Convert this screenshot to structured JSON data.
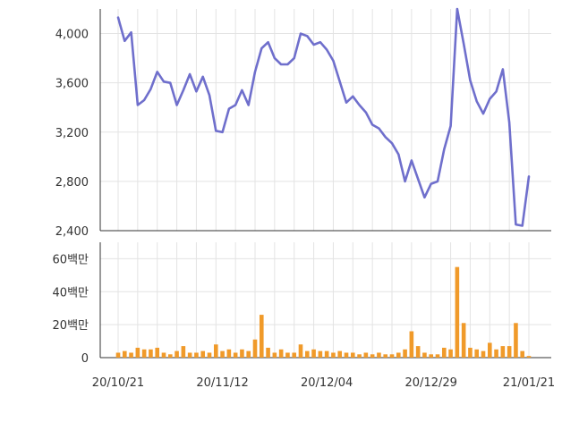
{
  "chart_data": [
    {
      "type": "line",
      "title": "",
      "xlabel": "",
      "ylabel": "",
      "ylim": [
        2400,
        4200
      ],
      "yticks": [
        {
          "value": 2400,
          "label": "2,400"
        },
        {
          "value": 2800,
          "label": "2,800"
        },
        {
          "value": 3200,
          "label": "3,200"
        },
        {
          "value": 3600,
          "label": "3,600"
        },
        {
          "value": 4000,
          "label": "4,000"
        }
      ],
      "grid": true,
      "legend": "none",
      "color": "#6f6fcc",
      "series": [
        {
          "values": [
            4130,
            3940,
            4010,
            3420,
            3460,
            3550,
            3690,
            3610,
            3600,
            3420,
            3540,
            3670,
            3530,
            3650,
            3500,
            3210,
            3200,
            3390,
            3420,
            3540,
            3420,
            3690,
            3880,
            3930,
            3800,
            3750,
            3750,
            3800,
            4000,
            3980,
            3910,
            3930,
            3870,
            3780,
            3610,
            3440,
            3490,
            3420,
            3360,
            3260,
            3230,
            3160,
            3110,
            3020,
            2800,
            2970,
            2820,
            2670,
            2780,
            2800,
            3060,
            3250,
            4200,
            3920,
            3620,
            3450,
            3350,
            3470,
            3530,
            3710,
            3280,
            2450,
            2440,
            2840
          ]
        }
      ]
    },
    {
      "type": "bar",
      "title": "",
      "xlabel": "",
      "ylabel": "",
      "ylim": [
        0,
        70
      ],
      "yticks": [
        {
          "value": 0,
          "label": "0"
        },
        {
          "value": 20,
          "label": "20백만"
        },
        {
          "value": 40,
          "label": "40백만"
        },
        {
          "value": 60,
          "label": "60백만"
        }
      ],
      "grid": true,
      "legend": "none",
      "color": "#f09a2a",
      "xticks": [
        {
          "index": 0,
          "label": "20/10/21"
        },
        {
          "index": 16,
          "label": "20/11/12"
        },
        {
          "index": 32,
          "label": "20/12/04"
        },
        {
          "index": 48,
          "label": "20/12/29"
        },
        {
          "index": 63,
          "label": "21/01/21"
        }
      ],
      "series": [
        {
          "values": [
            3,
            4,
            3,
            6,
            5,
            5,
            6,
            3,
            2,
            4,
            7,
            3,
            3,
            4,
            3,
            8,
            4,
            5,
            3,
            5,
            4,
            11,
            26,
            6,
            3,
            5,
            3,
            3,
            8,
            4,
            5,
            4,
            4,
            3,
            4,
            3,
            3,
            2,
            3,
            2,
            3,
            2,
            2,
            3,
            5,
            16,
            7,
            3,
            2,
            2,
            6,
            5,
            55,
            21,
            6,
            5,
            4,
            9,
            5,
            7,
            7,
            21,
            4,
            1
          ]
        }
      ]
    }
  ]
}
